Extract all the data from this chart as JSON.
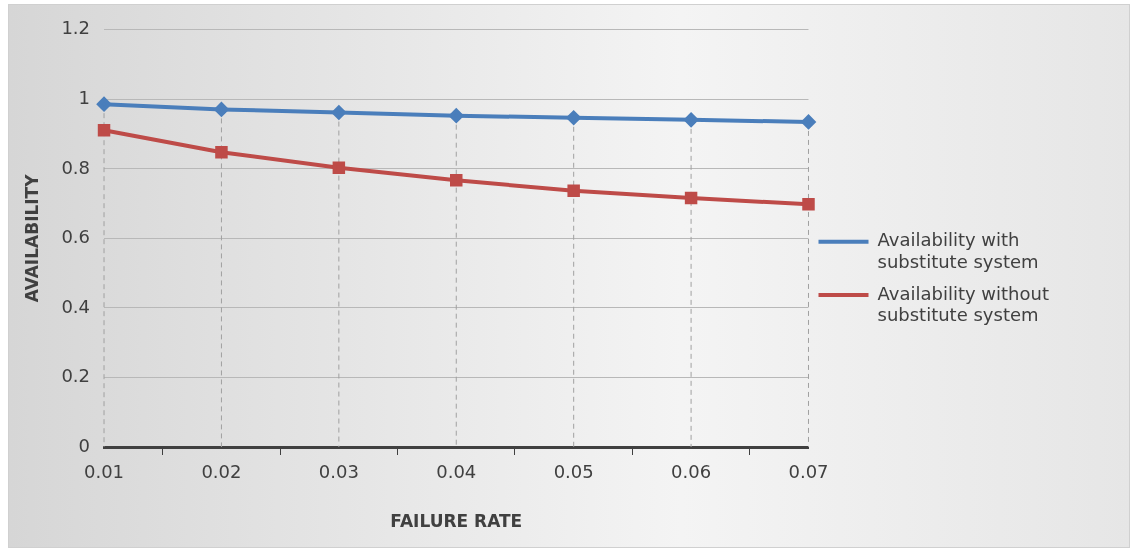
{
  "chart_data": {
    "type": "line",
    "xlabel": "FAILURE RATE",
    "ylabel": "AVAILABILITY",
    "categories": [
      "0.01",
      "0.02",
      "0.03",
      "0.04",
      "0.05",
      "0.06",
      "0.07"
    ],
    "series": [
      {
        "name": "Availability with substitute system",
        "color": "#4a7ebb",
        "marker": "diamond",
        "values": [
          0.986,
          0.971,
          0.962,
          0.953,
          0.947,
          0.941,
          0.935
        ]
      },
      {
        "name": "Availability without substitute system",
        "color": "#be4b48",
        "marker": "square",
        "values": [
          0.911,
          0.848,
          0.803,
          0.767,
          0.737,
          0.716,
          0.698
        ]
      }
    ],
    "ylim": [
      0,
      1.2
    ],
    "yticks": [
      0,
      0.2,
      0.4,
      0.6,
      0.8,
      1,
      1.2
    ],
    "grid": true,
    "legend": "right",
    "line_style": "solid"
  }
}
